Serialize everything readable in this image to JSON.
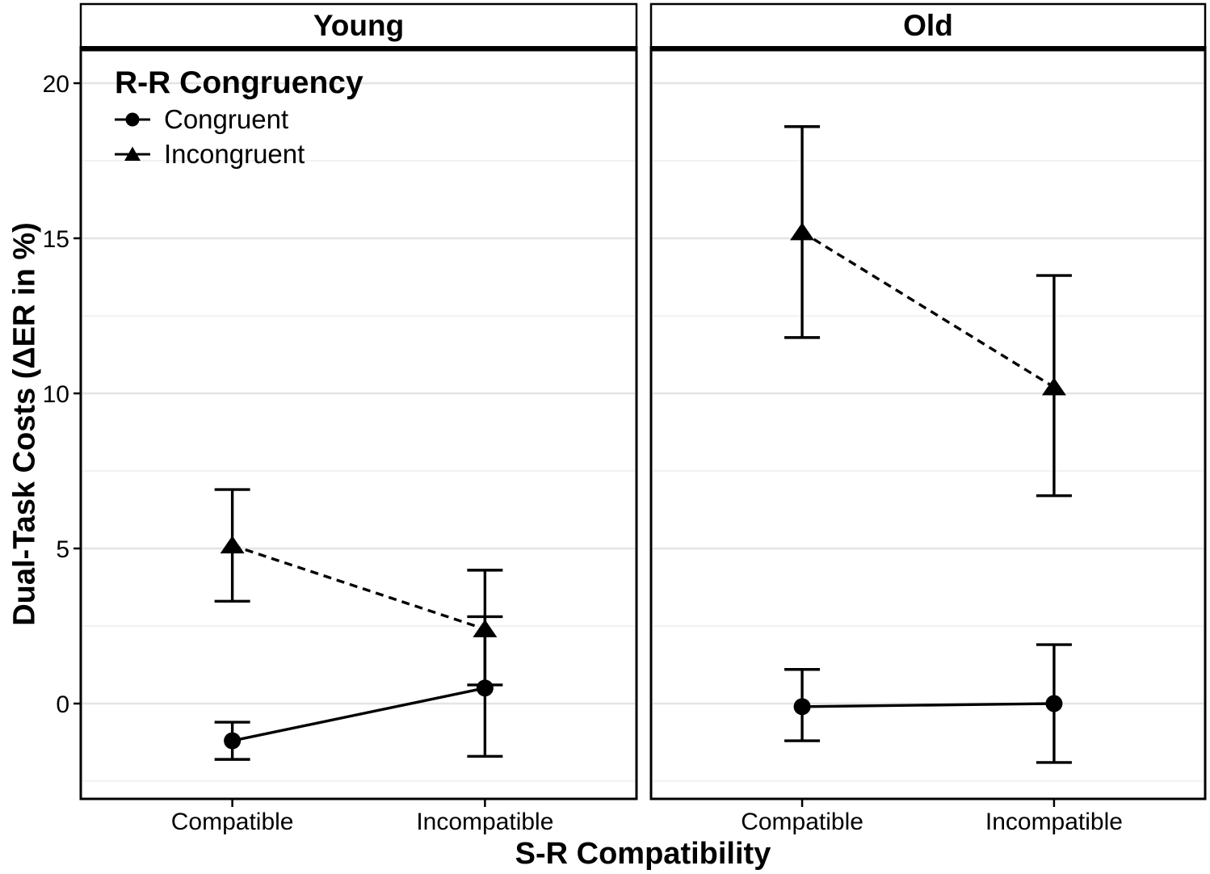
{
  "figure": {
    "background": "#ffffff",
    "text_color": "#000000",
    "line_color": "#000000",
    "gridline_major_color": "#e4e4e4",
    "gridline_minor_color": "#f2f2f2",
    "panel_border_color": "#000000"
  },
  "chart_data": {
    "type": "line",
    "title": "",
    "xlabel": "S-R Compatibility",
    "ylabel": "Dual-Task Costs (ΔER in %)",
    "categories": [
      "Compatible",
      "Incompatible"
    ],
    "yticks": [
      0,
      5,
      10,
      15,
      20
    ],
    "ytick_labels": [
      "0",
      "5",
      "10",
      "15",
      "20"
    ],
    "minor_gridlines": [
      -2.5,
      2.5,
      7.5,
      12.5,
      17.5
    ],
    "ylim": [
      -3.05,
      21.1
    ],
    "grid": "on",
    "legend": {
      "title": "R-R Congruency",
      "position": "inside-top-left-young-panel",
      "items": [
        {
          "label": "Congruent",
          "marker": "circle",
          "linestyle": "solid"
        },
        {
          "label": "Incongruent",
          "marker": "triangle",
          "linestyle": "dashed"
        }
      ]
    },
    "facets": [
      {
        "title": "Young",
        "series": [
          {
            "name": "Congruent",
            "marker": "circle",
            "linestyle": "solid",
            "points": [
              {
                "category": "Compatible",
                "value": -1.2,
                "ci_low": -1.8,
                "ci_high": -0.6
              },
              {
                "category": "Incompatible",
                "value": 0.5,
                "ci_low": -1.7,
                "ci_high": 2.8
              }
            ]
          },
          {
            "name": "Incongruent",
            "marker": "triangle",
            "linestyle": "dashed",
            "points": [
              {
                "category": "Compatible",
                "value": 5.1,
                "ci_low": 3.3,
                "ci_high": 6.9
              },
              {
                "category": "Incompatible",
                "value": 2.4,
                "ci_low": 0.6,
                "ci_high": 4.3
              }
            ]
          }
        ]
      },
      {
        "title": "Old",
        "series": [
          {
            "name": "Congruent",
            "marker": "circle",
            "linestyle": "solid",
            "points": [
              {
                "category": "Compatible",
                "value": -0.1,
                "ci_low": -1.2,
                "ci_high": 1.1
              },
              {
                "category": "Incompatible",
                "value": 0.0,
                "ci_low": -1.9,
                "ci_high": 1.9
              }
            ]
          },
          {
            "name": "Incongruent",
            "marker": "triangle",
            "linestyle": "dashed",
            "points": [
              {
                "category": "Compatible",
                "value": 15.2,
                "ci_low": 11.8,
                "ci_high": 18.6
              },
              {
                "category": "Incompatible",
                "value": 10.2,
                "ci_low": 6.7,
                "ci_high": 13.8
              }
            ]
          }
        ]
      }
    ]
  }
}
